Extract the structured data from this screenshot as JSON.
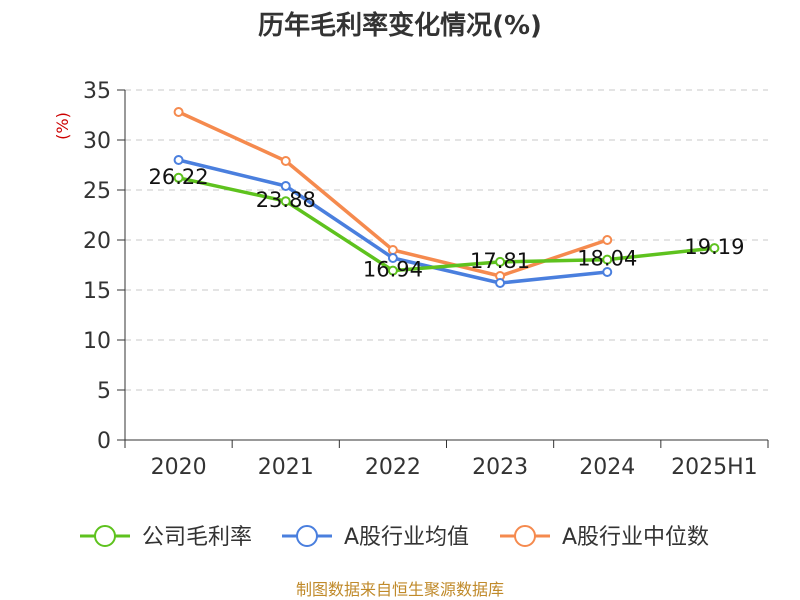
{
  "chart_data": {
    "type": "line",
    "title": "历年毛利率变化情况(%)",
    "ylabel": "(%)",
    "xlabel": "",
    "categories": [
      "2020",
      "2021",
      "2022",
      "2023",
      "2024",
      "2025H1"
    ],
    "ylim": [
      0,
      35
    ],
    "yticks": [
      0,
      5,
      10,
      15,
      20,
      25,
      30,
      35
    ],
    "grid": true,
    "legend_position": "bottom",
    "series": [
      {
        "name": "公司毛利率",
        "color": "#5ec21e",
        "values": [
          26.22,
          23.88,
          16.94,
          17.81,
          18.04,
          19.19
        ],
        "labels": [
          "26.22",
          "23.88",
          "16.94",
          "17.81",
          "18.04",
          "19.19"
        ]
      },
      {
        "name": "A股行业均值",
        "color": "#4a7fde",
        "values": [
          28.0,
          25.4,
          18.2,
          15.7,
          16.8,
          null
        ],
        "labels": []
      },
      {
        "name": "A股行业中位数",
        "color": "#f58a4e",
        "values": [
          32.8,
          27.9,
          19.0,
          16.4,
          20.0,
          null
        ],
        "labels": []
      }
    ]
  },
  "source": "制图数据来自恒生聚源数据库"
}
